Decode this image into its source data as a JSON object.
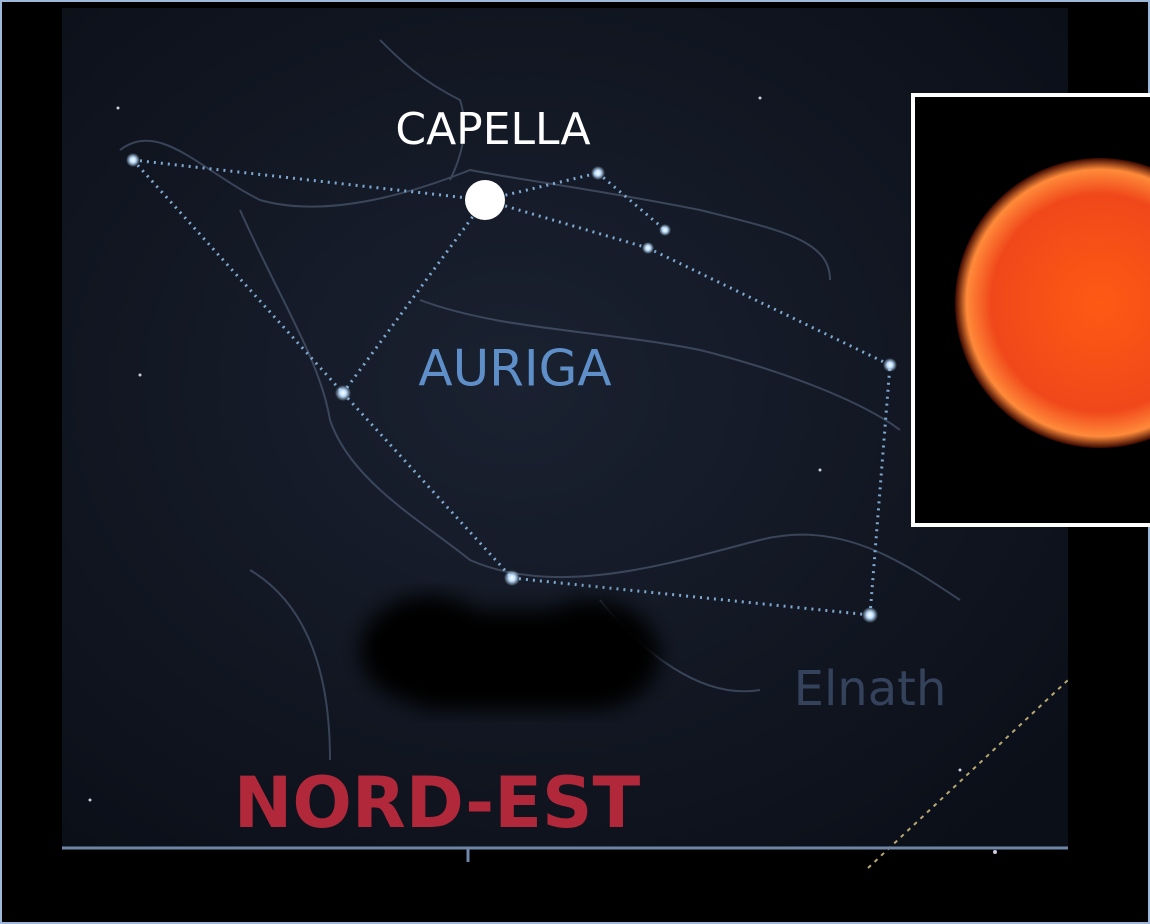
{
  "labels": {
    "star": "CAPELLA",
    "constellation": "AURIGA",
    "secondary_star": "Elnath",
    "direction": "NORD-EST"
  }
}
